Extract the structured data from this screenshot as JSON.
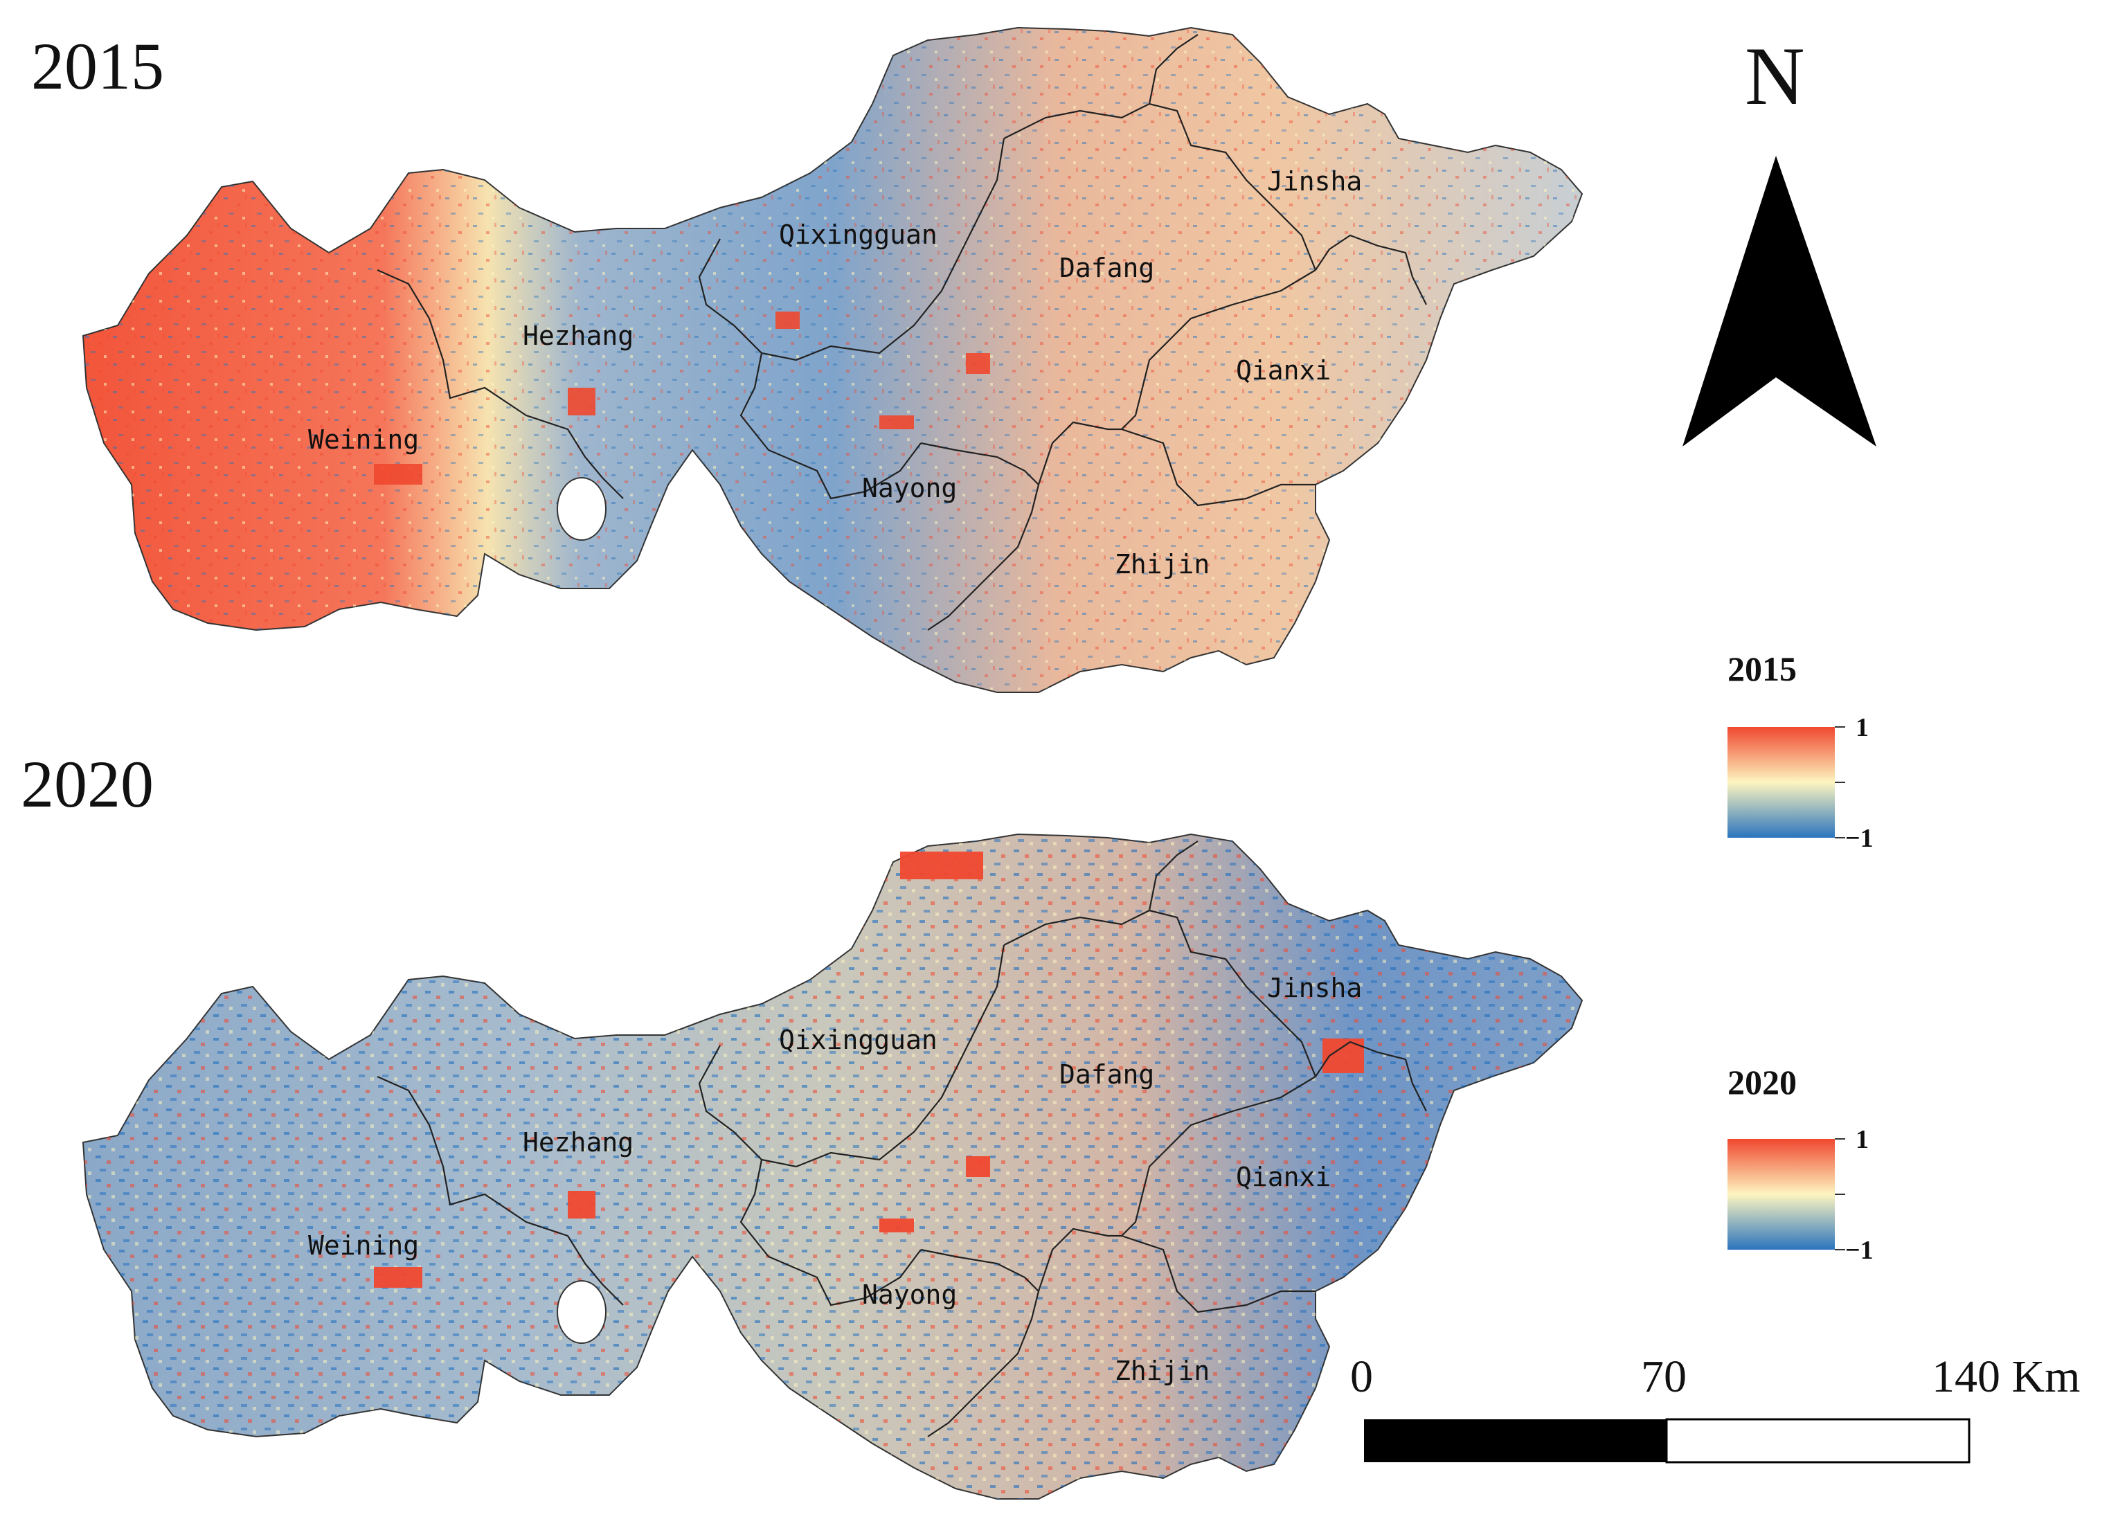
{
  "maps": [
    {
      "year": "2015",
      "counties": [
        "Weining",
        "Hezhang",
        "Qixingguan",
        "Dafang",
        "Jinsha",
        "Qianxi",
        "Nayong",
        "Zhijin"
      ],
      "dominant_tone": "red (west) to mixed blue/red (east)"
    },
    {
      "year": "2020",
      "counties": [
        "Weining",
        "Hezhang",
        "Qixingguan",
        "Dafang",
        "Jinsha",
        "Qianxi",
        "Nayong",
        "Zhijin"
      ],
      "dominant_tone": "blue (west) to mixed blue/red (east)"
    }
  ],
  "north_arrow": {
    "letter": "N",
    "icon": "north-arrow-icon"
  },
  "legends": [
    {
      "title": "2015",
      "max_label": "1",
      "min_label": "−1"
    },
    {
      "title": "2020",
      "max_label": "1",
      "min_label": "−1"
    }
  ],
  "color_ramp": {
    "high": "#f0482f",
    "mid": "#fdf5c0",
    "low": "#2a74bd"
  },
  "scale_bar": {
    "labels": [
      "0",
      "70",
      "140 Km"
    ]
  }
}
